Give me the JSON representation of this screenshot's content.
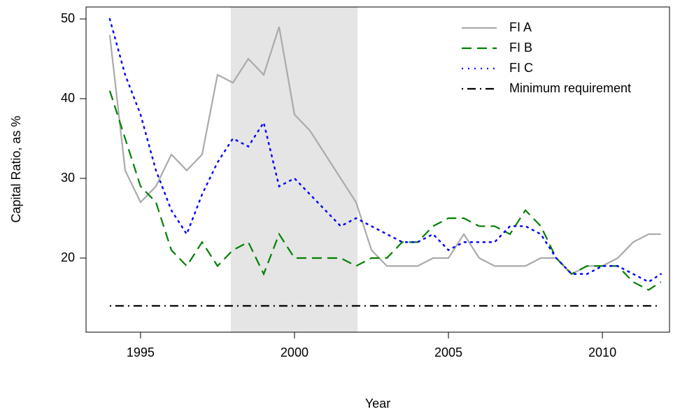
{
  "chart_data": {
    "type": "line",
    "x_label": "Year",
    "y_label": "Capital Ratio, as %",
    "x": [
      1994,
      1994.5,
      1995,
      1995.5,
      1996,
      1996.5,
      1997,
      1997.5,
      1998,
      1998.5,
      1999,
      1999.5,
      2000,
      2000.5,
      2001,
      2001.5,
      2002,
      2002.5,
      2003,
      2003.5,
      2004,
      2004.5,
      2005,
      2005.5,
      2006,
      2006.5,
      2007,
      2007.5,
      2008,
      2008.5,
      2009,
      2009.5,
      2010,
      2010.5,
      2011,
      2011.5,
      2011.9
    ],
    "series": [
      {
        "name": "FI A",
        "color": "#aaaaaa",
        "dash": "solid",
        "values": [
          48,
          31,
          27,
          29,
          33,
          31,
          33,
          43,
          42,
          45,
          43,
          49,
          38,
          36,
          33,
          30,
          27,
          21,
          19,
          19,
          19,
          20,
          20,
          23,
          20,
          19,
          19,
          19,
          20,
          20,
          18,
          19,
          19,
          20,
          22,
          23,
          23
        ]
      },
      {
        "name": "FI B",
        "color": "#008000",
        "dash": "dashed",
        "values": [
          41,
          35,
          29,
          27,
          21,
          19,
          22,
          19,
          21,
          22,
          18,
          23,
          20,
          20,
          20,
          20,
          19,
          20,
          20,
          22,
          22,
          24,
          25,
          25,
          24,
          24,
          23,
          26,
          24,
          20,
          18,
          19,
          19,
          19,
          17,
          16,
          17
        ]
      },
      {
        "name": "FI C",
        "color": "#0000ff",
        "dash": "dotted",
        "values": [
          50,
          43,
          38,
          31,
          26,
          23,
          28,
          32,
          35,
          34,
          37,
          29,
          30,
          28,
          26,
          24,
          25,
          24,
          23,
          22,
          22,
          23,
          21,
          22,
          22,
          22,
          24,
          24,
          23,
          20,
          18,
          18,
          19,
          19,
          18,
          17,
          18
        ]
      },
      {
        "name": "Minimum requirement",
        "color": "#000000",
        "dash": "dotdash",
        "values": [
          14,
          14,
          14,
          14,
          14,
          14,
          14,
          14,
          14,
          14,
          14,
          14,
          14,
          14,
          14,
          14,
          14,
          14,
          14,
          14,
          14,
          14,
          14,
          14,
          14,
          14,
          14,
          14,
          14,
          14,
          14,
          14,
          14,
          14,
          14,
          14,
          14
        ]
      }
    ],
    "shaded_region": [
      1997.93,
      2002.05
    ],
    "shade_color": "#e5e5e5",
    "xlim": [
      1993.23,
      2012.18
    ],
    "ylim": [
      10.7,
      51.5
    ],
    "xticks": [
      1995,
      2000,
      2005,
      2010
    ],
    "yticks": [
      20,
      30,
      40,
      50
    ],
    "grid": false,
    "legend": "top-right"
  }
}
